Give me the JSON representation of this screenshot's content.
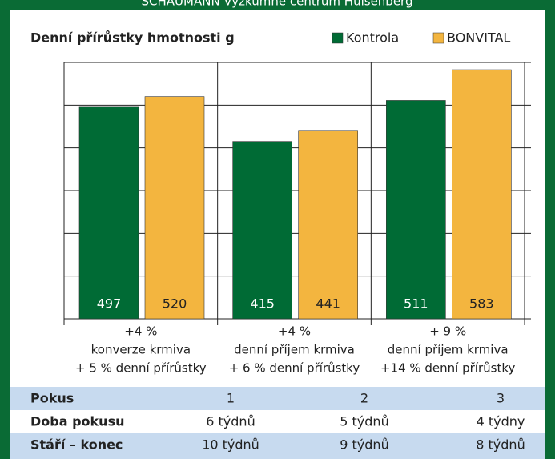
{
  "header": "SCHAUMANN Výzkumné centrum Hülsenberg",
  "chart_data": {
    "type": "bar",
    "title": "Denní přírůstky hmotnosti g",
    "categories": [
      [
        "+4 %",
        "konverze krmiva",
        "+ 5 % denní přírůstky"
      ],
      [
        "+4 %",
        "denní příjem krmiva",
        "+ 6 % denní přírůstky"
      ],
      [
        "+ 9 %",
        "denní příjem krmiva",
        "+14 % denní přírůstky"
      ]
    ],
    "series": [
      {
        "name": "Kontrola",
        "color": "#006b35",
        "values": [
          497,
          415,
          511
        ]
      },
      {
        "name": "BONVITAL",
        "color": "#f3b53f",
        "values": [
          520,
          441,
          583
        ]
      }
    ],
    "ylim": [
      0,
      600
    ],
    "yticks": [
      0,
      100,
      200,
      300,
      400,
      500,
      600
    ],
    "grid": true
  },
  "table": {
    "rows": [
      [
        "Pokus",
        "1",
        "2",
        "3"
      ],
      [
        "Doba pokusu",
        "6 týdnů",
        "5 týdnů",
        "4 týdny"
      ],
      [
        "Stáří – konec",
        "10 týdnů",
        "9 týdnů",
        "8 týdnů"
      ]
    ]
  }
}
